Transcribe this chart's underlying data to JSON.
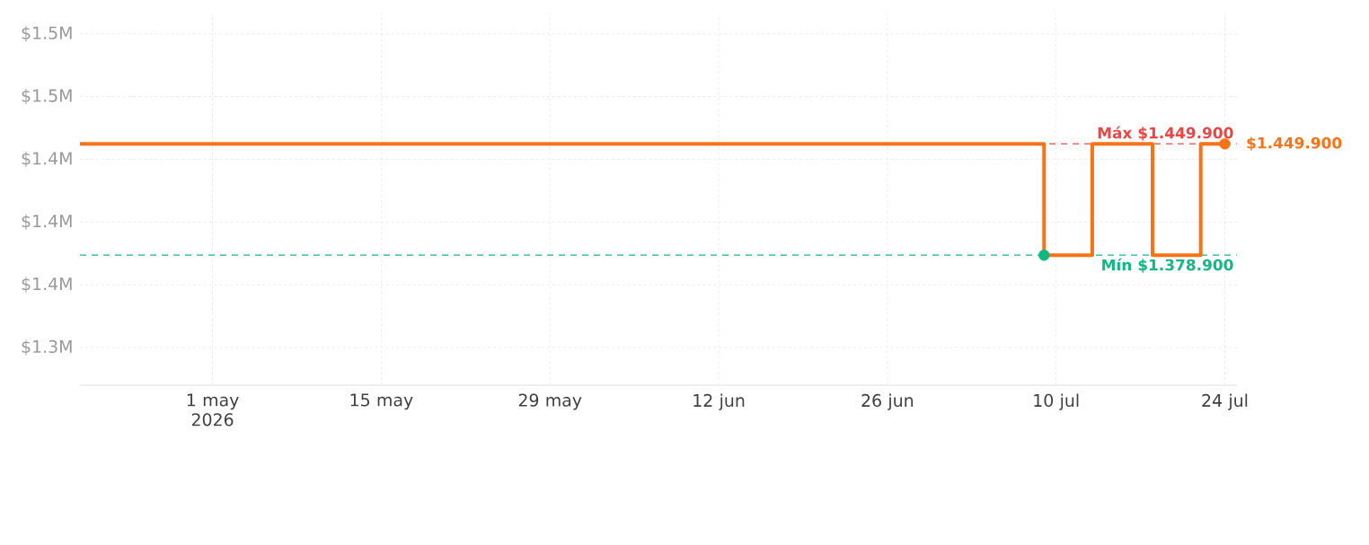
{
  "chart_data": {
    "type": "step",
    "xlim": [
      "2026-04-20",
      "2026-07-25"
    ],
    "ylim": [
      1296000,
      1533000
    ],
    "xticks": [
      {
        "value": "2026-05-01",
        "label": "1 may 2026"
      },
      {
        "value": "2026-05-15",
        "label": "15 may"
      },
      {
        "value": "2026-05-29",
        "label": "29 may"
      },
      {
        "value": "2026-06-12",
        "label": "12 jun"
      },
      {
        "value": "2026-06-26",
        "label": "26 jun"
      },
      {
        "value": "2026-07-10",
        "label": "10 jul"
      },
      {
        "value": "2026-07-24",
        "label": "24 jul"
      }
    ],
    "yticks": [
      {
        "value": 1320000,
        "label": "$1.3M"
      },
      {
        "value": 1360000,
        "label": "$1.4M"
      },
      {
        "value": 1400000,
        "label": "$1.4M"
      },
      {
        "value": 1440000,
        "label": "$1.4M"
      },
      {
        "value": 1480000,
        "label": "$1.5M"
      },
      {
        "value": 1520000,
        "label": "$1.5M"
      }
    ],
    "grid": true,
    "ref_lines": [
      {
        "axis": "y",
        "value": 1449900,
        "label": "Máx $1.449.900",
        "color": "#ef4444",
        "line_style": "dashed"
      },
      {
        "axis": "y",
        "value": 1378900,
        "label": "Mín $1.378.900",
        "color": "#10b981",
        "line_style": "dashed"
      }
    ],
    "series": [
      {
        "color": "#f97316",
        "x": [
          "2026-04-20",
          "2026-07-05",
          "2026-07-09",
          "2026-07-13",
          "2026-07-18",
          "2026-07-22",
          "2026-07-24"
        ],
        "values": [
          1449900,
          1449900,
          1378900,
          1449900,
          1378900,
          1449900,
          1449900
        ]
      },
      {
        "type": "scatter",
        "marker": "circle",
        "color": "#f97316",
        "x": [
          "2026-07-24"
        ],
        "values": [
          1449900
        ],
        "value_labels": [
          "$1.449.900"
        ]
      },
      {
        "type": "scatter",
        "marker": "circle",
        "color": "#10b981",
        "x": [
          "2026-07-09"
        ],
        "values": [
          1378900
        ]
      }
    ]
  }
}
